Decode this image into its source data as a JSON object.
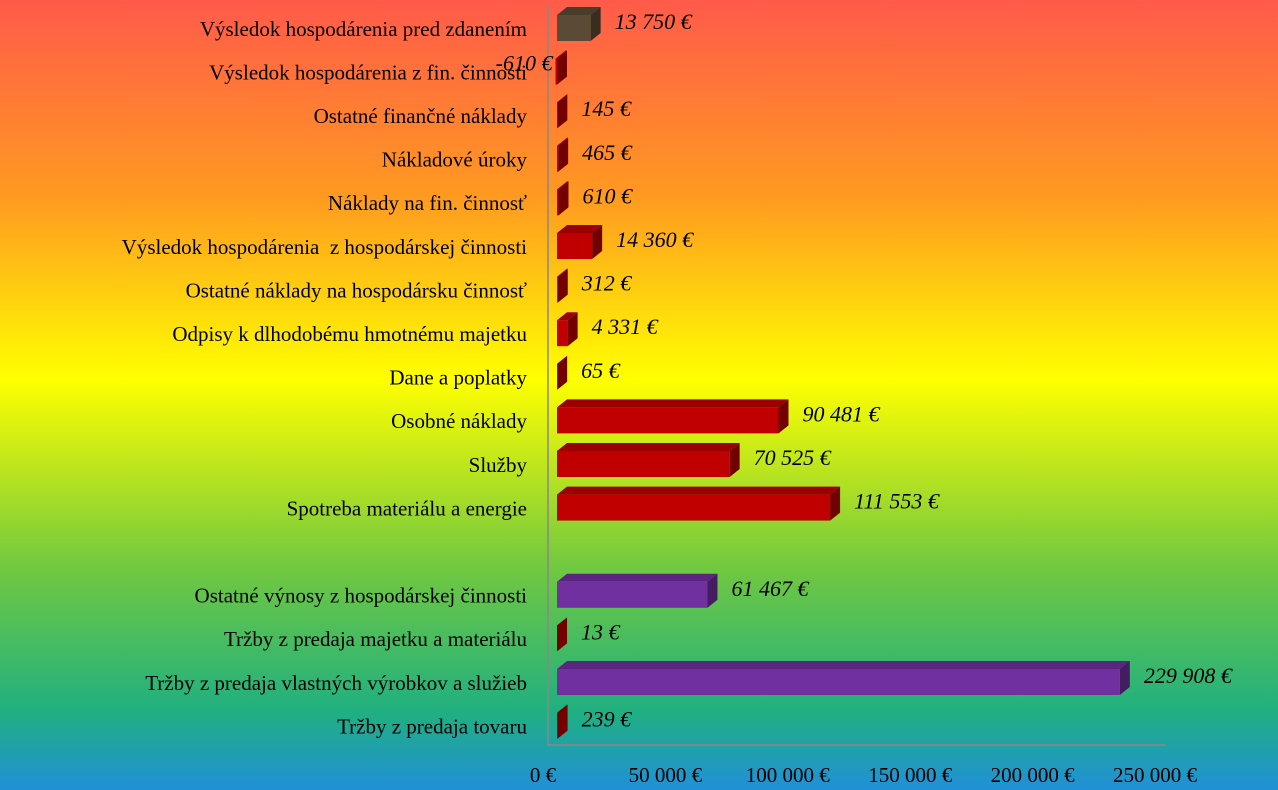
{
  "chart_data": {
    "type": "bar3d",
    "categories": [
      "Výsledok hospodárenia pred zdanením",
      "Výsledok hospodárenia z fin. činnosti",
      "Ostatné finančné náklady",
      "Nákladové úroky",
      "Náklady na fin. činnosť",
      "Výsledok hospodárenia  z hospodárskej činnosti",
      "Ostatné náklady na hospodársku činnosť",
      "Odpisy k dlhodobému hmotnému majetku",
      "Dane a poplatky",
      "Osobné náklady",
      "Služby",
      "Spotreba materiálu a energie",
      null,
      "Ostatné výnosy z hospodárskej činnosti",
      "Tržby z predaja majetku a materiálu",
      "Tržby z predaja vlastných výrobkov a služieb",
      "Tržby z predaja tovaru"
    ],
    "values": [
      13750,
      -610,
      145,
      465,
      610,
      14360,
      312,
      4331,
      65,
      90481,
      70525,
      111553,
      null,
      61467,
      13,
      229908,
      239
    ],
    "value_labels": [
      "13 750 €",
      "-610 €",
      "145 €",
      "465 €",
      "610 €",
      "14 360 €",
      "312 €",
      "4 331 €",
      "65 €",
      "90 481 €",
      "70 525 €",
      "111 553 €",
      null,
      "61 467 €",
      "13 €",
      "229 908 €",
      "239 €"
    ],
    "colors": [
      "#5b4b36",
      "#c00000",
      "#c00000",
      "#c00000",
      "#c00000",
      "#c00000",
      "#c00000",
      "#c00000",
      "#c00000",
      "#c00000",
      "#c00000",
      "#c00000",
      null,
      "#7030a0",
      "#c00000",
      "#7030a0",
      "#c00000"
    ],
    "xlim": [
      0,
      250000
    ],
    "xticks": [
      {
        "value": 0,
        "label": "0 €"
      },
      {
        "value": 50000,
        "label": "50 000 €"
      },
      {
        "value": 100000,
        "label": "100 000 €"
      },
      {
        "value": 150000,
        "label": "150 000 €"
      },
      {
        "value": 200000,
        "label": "200 000 €"
      },
      {
        "value": 250000,
        "label": "250 000 €"
      }
    ]
  }
}
